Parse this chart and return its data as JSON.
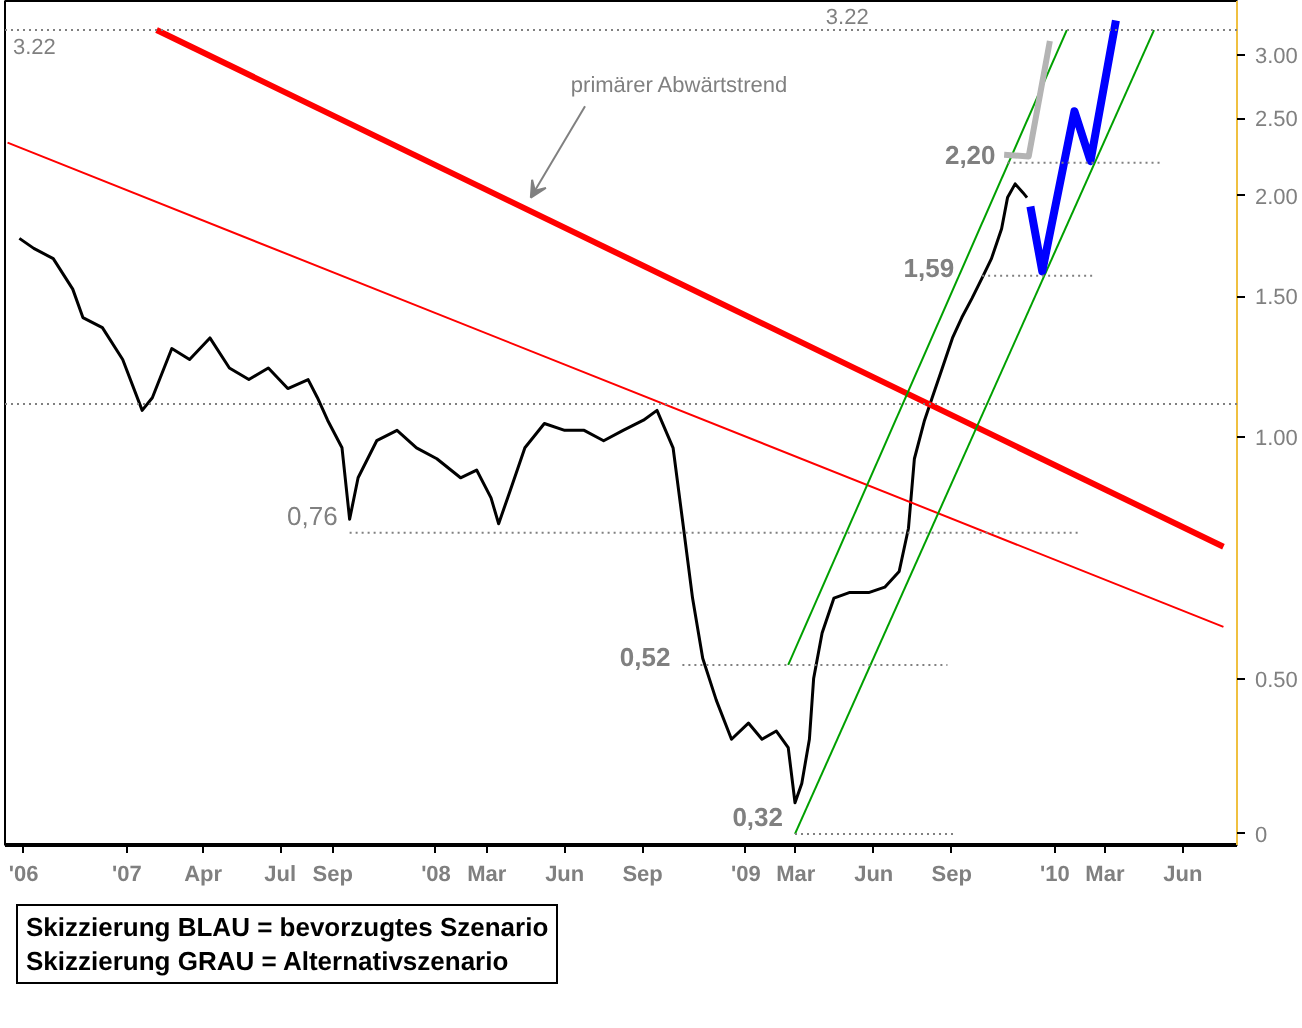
{
  "chart_data": {
    "type": "line",
    "xlim": [
      "2006-08-10",
      "2010-08-04"
    ],
    "ylim": [
      0.31,
      3.5
    ],
    "log": true,
    "xticks": [
      {
        "value": "2006-09-01",
        "label": "'06"
      },
      {
        "value": "2007-01-01",
        "label": "'07"
      },
      {
        "value": "2007-04-01",
        "label": "Apr"
      },
      {
        "value": "2007-07-01",
        "label": "Jul"
      },
      {
        "value": "2007-09-01",
        "label": "Sep"
      },
      {
        "value": "2008-01-01",
        "label": "'08"
      },
      {
        "value": "2008-03-01",
        "label": "Mar"
      },
      {
        "value": "2008-06-01",
        "label": "Jun"
      },
      {
        "value": "2008-09-01",
        "label": "Sep"
      },
      {
        "value": "2009-01-01",
        "label": "'09"
      },
      {
        "value": "2009-03-01",
        "label": "Mar"
      },
      {
        "value": "2009-06-01",
        "label": "Jun"
      },
      {
        "value": "2009-09-01",
        "label": "Sep"
      },
      {
        "value": "2010-01-01",
        "label": "'10"
      },
      {
        "value": "2010-03-01",
        "label": "Mar"
      },
      {
        "value": "2010-06-01",
        "label": "Jun"
      }
    ],
    "yticks": [
      {
        "value": 0.32,
        "label": "0"
      },
      {
        "value": 0.5,
        "label": "0.50"
      },
      {
        "value": 1,
        "label": "1.00"
      },
      {
        "value": 1.5,
        "label": "1.50"
      },
      {
        "value": 2,
        "label": "2.00"
      },
      {
        "value": 2.5,
        "label": "2.50"
      },
      {
        "value": 3,
        "label": "3.00"
      }
    ],
    "grid": false,
    "series": [
      {
        "color": "#000000",
        "x": [
          "2006-08-27",
          "2006-09-13",
          "2006-10-06",
          "2006-10-29",
          "2006-11-10",
          "2006-12-03",
          "2006-12-27",
          "2007-01-19",
          "2007-01-31",
          "2007-02-23",
          "2007-03-16",
          "2007-04-09",
          "2007-05-02",
          "2007-05-25",
          "2007-06-17",
          "2007-07-10",
          "2007-08-03",
          "2007-08-14",
          "2007-08-26",
          "2007-09-12",
          "2007-09-21",
          "2007-10-01",
          "2007-10-23",
          "2007-11-16",
          "2007-12-09",
          "2008-01-02",
          "2008-01-30",
          "2008-02-18",
          "2008-03-06",
          "2008-03-15",
          "2008-03-29",
          "2008-04-15",
          "2008-05-08",
          "2008-06-01",
          "2008-06-24",
          "2008-07-17",
          "2008-08-09",
          "2008-09-02",
          "2008-09-18",
          "2008-10-07",
          "2008-10-18",
          "2008-10-30",
          "2008-11-11",
          "2008-11-27",
          "2008-12-15",
          "2009-01-04",
          "2009-01-20",
          "2009-02-06",
          "2009-02-20",
          "2009-02-28",
          "2009-03-08",
          "2009-03-17",
          "2009-03-22",
          "2009-04-01",
          "2009-04-15",
          "2009-05-03",
          "2009-05-26",
          "2009-06-14",
          "2009-07-01",
          "2009-07-12",
          "2009-07-19",
          "2009-07-31",
          "2009-08-09",
          "2009-08-21",
          "2009-09-02",
          "2009-09-13",
          "2009-09-25",
          "2009-10-07",
          "2009-10-18",
          "2009-10-30",
          "2009-11-06",
          "2009-11-15",
          "2009-11-24",
          "2009-11-29"
        ],
        "values": [
          1.77,
          1.72,
          1.67,
          1.53,
          1.41,
          1.37,
          1.25,
          1.08,
          1.12,
          1.29,
          1.25,
          1.33,
          1.22,
          1.18,
          1.22,
          1.15,
          1.18,
          1.12,
          1.05,
          0.97,
          0.79,
          0.89,
          0.99,
          1.02,
          0.97,
          0.94,
          0.89,
          0.91,
          0.84,
          0.78,
          0.86,
          0.97,
          1.04,
          1.02,
          1.02,
          0.99,
          1.02,
          1.05,
          1.08,
          0.97,
          0.79,
          0.63,
          0.53,
          0.47,
          0.42,
          0.44,
          0.42,
          0.43,
          0.41,
          0.35,
          0.37,
          0.42,
          0.5,
          0.57,
          0.63,
          0.64,
          0.64,
          0.65,
          0.68,
          0.77,
          0.94,
          1.05,
          1.12,
          1.22,
          1.33,
          1.41,
          1.49,
          1.58,
          1.67,
          1.82,
          1.99,
          2.07,
          2.02,
          1.99
        ]
      },
      {
        "color": "#ff0000",
        "x": [
          "2007-02-05",
          "2010-07-19"
        ],
        "values": [
          3.22,
          0.73
        ]
      },
      {
        "color": "#ff0000",
        "x": [
          "2006-08-13",
          "2010-07-19"
        ],
        "values": [
          2.33,
          0.58
        ]
      },
      {
        "color": "#00a000",
        "x": [
          "2009-02-20",
          "2010-01-15"
        ],
        "values": [
          0.52,
          3.22
        ]
      },
      {
        "color": "#00a000",
        "x": [
          "2009-02-28",
          "2010-04-28"
        ],
        "values": [
          0.32,
          3.22
        ]
      },
      {
        "color": "#0000ff",
        "x": [
          "2009-12-03",
          "2009-12-17",
          "2010-01-24",
          "2010-02-12",
          "2010-03-14"
        ],
        "values": [
          1.94,
          1.61,
          2.55,
          2.21,
          3.31
        ]
      },
      {
        "color": "#b4b4b4",
        "x": [
          "2009-11-02",
          "2009-12-01",
          "2009-12-26"
        ],
        "values": [
          2.25,
          2.24,
          3.12
        ]
      },
      {
        "color": "#808080",
        "line_style": "dotted",
        "x": [
          "2007-09-21",
          "2010-01-31"
        ],
        "values": [
          0.76,
          0.76
        ]
      },
      {
        "color": "#808080",
        "line_style": "dotted",
        "x": [
          "2008-10-18",
          "2009-08-27"
        ],
        "values": [
          0.52,
          0.52
        ]
      },
      {
        "color": "#808080",
        "line_style": "dotted",
        "x": [
          "2009-02-28",
          "2009-09-04"
        ],
        "values": [
          0.32,
          0.32
        ]
      },
      {
        "color": "#808080",
        "line_style": "dotted",
        "x": [
          "2009-10-07",
          "2010-02-15"
        ],
        "values": [
          1.59,
          1.59
        ]
      },
      {
        "color": "#808080",
        "line_style": "dotted",
        "x": [
          "2009-11-06",
          "2010-05-05"
        ],
        "values": [
          2.2,
          2.2
        ]
      }
    ],
    "ref_lines": [
      {
        "axis": "y",
        "value": 3.22,
        "label": "3.22",
        "color": "#808080",
        "line_style": "dotted"
      },
      {
        "axis": "y",
        "value": 1.1,
        "label": null,
        "color": "#808080",
        "line_style": "dotted"
      }
    ],
    "annotations": [
      {
        "text": "primärer Abwärtstrend",
        "x": "2008-04-22",
        "y": 1.99
      },
      {
        "text": "3.22",
        "x": "2009-05-26",
        "y": 3.22
      },
      {
        "text": "0,76",
        "x": "2007-09-21",
        "y": 0.76
      },
      {
        "text": "0,52",
        "x": "2008-10-18",
        "y": 0.52
      },
      {
        "text": "0,32",
        "x": "2009-02-28",
        "y": 0.32
      },
      {
        "text": "1,59",
        "x": "2009-10-07",
        "y": 1.59
      },
      {
        "text": "2,20",
        "x": "2009-11-06",
        "y": 2.2
      },
      "Skizzierung BLAU = bevorzugtes Szenario",
      "Skizzierung GRAU = Alternativszenario"
    ]
  }
}
